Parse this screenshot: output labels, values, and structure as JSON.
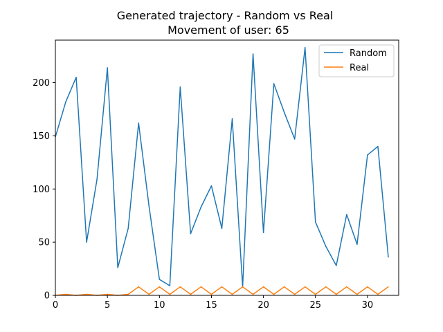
{
  "chart_data": {
    "type": "line",
    "title": "Generated trajectory - Random vs Real",
    "subtitle": "Movement of user: 65",
    "xlabel": "",
    "ylabel": "",
    "xlim": [
      0,
      33
    ],
    "ylim": [
      0,
      240
    ],
    "xticks": [
      0,
      5,
      10,
      15,
      20,
      25,
      30
    ],
    "yticks": [
      0,
      50,
      100,
      150,
      200
    ],
    "grid": false,
    "legend_position": "top-right",
    "x": [
      0,
      1,
      2,
      3,
      4,
      5,
      6,
      7,
      8,
      9,
      10,
      11,
      12,
      13,
      14,
      15,
      16,
      17,
      18,
      19,
      20,
      21,
      22,
      23,
      24,
      25,
      26,
      27,
      28,
      29,
      30,
      31,
      32
    ],
    "series": [
      {
        "name": "Random",
        "color": "#1f77b4",
        "values": [
          149,
          182,
          205,
          50,
          109,
          214,
          26,
          63,
          162,
          84,
          15,
          9,
          196,
          58,
          83,
          103,
          63,
          166,
          8,
          227,
          59,
          199,
          172,
          147,
          233,
          69,
          46,
          28,
          76,
          48,
          132,
          140,
          36
        ]
      },
      {
        "name": "Real",
        "color": "#ff7f0e",
        "values": [
          0,
          1,
          0,
          1,
          0,
          1,
          0,
          1,
          8,
          1,
          8,
          1,
          8,
          1,
          8,
          1,
          8,
          1,
          8,
          1,
          8,
          1,
          8,
          1,
          8,
          1,
          8,
          1,
          8,
          1,
          8,
          1,
          8
        ]
      }
    ]
  }
}
